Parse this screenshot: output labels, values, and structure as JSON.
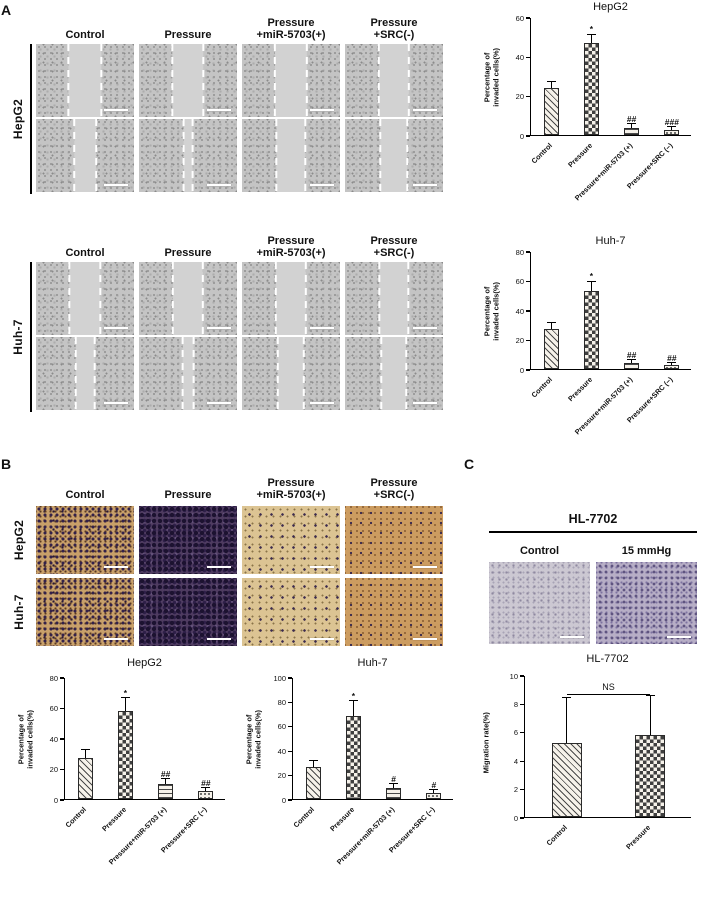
{
  "panels": {
    "A": {
      "label": "A",
      "headers": [
        "Control",
        "Pressure",
        "Pressure\n+miR-5703(+)",
        "Pressure\n+SRC(-)"
      ],
      "blocks": [
        {
          "cell_line": "HepG2",
          "gap_rows": [
            [
              34,
              32,
              33,
              31
            ],
            [
              22,
              9,
              30,
              28
            ]
          ]
        },
        {
          "cell_line": "Huh-7",
          "gap_rows": [
            [
              32,
              31,
              31,
              30
            ],
            [
              19,
              11,
              27,
              26
            ]
          ]
        }
      ]
    },
    "B": {
      "label": "B",
      "headers": [
        "Control",
        "Pressure",
        "Pressure\n+miR-5703(+)",
        "Pressure\n+SRC(-)"
      ],
      "rows": [
        {
          "cell_line": "HepG2",
          "stain": [
            "medium",
            "dense",
            "sparse",
            "warm"
          ]
        },
        {
          "cell_line": "Huh-7",
          "stain": [
            "medium",
            "dense",
            "sparse",
            "warm"
          ]
        }
      ]
    },
    "C": {
      "label": "C",
      "title": "HL-7702",
      "headers": [
        "Control",
        "15 mmHg"
      ],
      "stain": [
        "clight",
        "cdark"
      ]
    }
  },
  "chart_data": [
    {
      "type": "bar",
      "title": "HepG2",
      "ylabel": "Percentage of\ninvaded cells(%)",
      "ylim": [
        0,
        60
      ],
      "yticks": [
        0,
        20,
        40,
        60
      ],
      "categories": [
        "Control",
        "Pressure",
        "Pressure+miR-5703 (+)",
        "Pressure+SRC (−)"
      ],
      "values": [
        24,
        47,
        3.5,
        2.5
      ],
      "errors": [
        3,
        4,
        2,
        1.5
      ],
      "sig": [
        "",
        "*",
        "##",
        "###"
      ],
      "patterns": [
        "diag",
        "check",
        "hline",
        "dots"
      ]
    },
    {
      "type": "bar",
      "title": "Huh-7",
      "ylabel": "Percentage of\ninvaded cells(%)",
      "ylim": [
        0,
        80
      ],
      "yticks": [
        0,
        20,
        40,
        60,
        80
      ],
      "categories": [
        "Control",
        "Pressure",
        "Pressure+miR-5703 (+)",
        "Pressure+SRC (−)"
      ],
      "values": [
        27,
        53,
        4,
        2.5
      ],
      "errors": [
        4,
        6,
        2,
        1.5
      ],
      "sig": [
        "",
        "*",
        "##",
        "##"
      ],
      "patterns": [
        "diag",
        "check",
        "hline",
        "dots"
      ]
    },
    {
      "type": "bar",
      "title": "HepG2",
      "ylabel": "Percentage of\ninvaded cells(%)",
      "ylim": [
        0,
        80
      ],
      "yticks": [
        0,
        20,
        40,
        60,
        80
      ],
      "categories": [
        "Control",
        "Pressure",
        "Pressure+miR-5703 (+)",
        "Pressure+SRC (−)"
      ],
      "values": [
        27,
        58,
        10,
        5
      ],
      "errors": [
        5,
        8,
        3,
        2
      ],
      "sig": [
        "",
        "*",
        "##",
        "##"
      ],
      "patterns": [
        "diag",
        "check",
        "hline",
        "dots"
      ]
    },
    {
      "type": "bar",
      "title": "Huh-7",
      "ylabel": "Percentage of\ninvaded cells(%)",
      "ylim": [
        0,
        100
      ],
      "yticks": [
        0,
        20,
        40,
        60,
        80,
        100
      ],
      "categories": [
        "Control",
        "Pressure",
        "Pressure+miR-5703 (+)",
        "Pressure+SRC (−)"
      ],
      "values": [
        26,
        68,
        9,
        5
      ],
      "errors": [
        5,
        12,
        3,
        2
      ],
      "sig": [
        "",
        "*",
        "#",
        "#"
      ],
      "patterns": [
        "diag",
        "check",
        "hline",
        "dots"
      ]
    },
    {
      "type": "bar",
      "title": "HL-7702",
      "ylabel": "Migration rate(%)",
      "ylim": [
        0,
        10
      ],
      "yticks": [
        0,
        2,
        4,
        6,
        8,
        10
      ],
      "categories": [
        "Control",
        "Pressure"
      ],
      "values": [
        5.2,
        5.8
      ],
      "errors": [
        3.2,
        2.7
      ],
      "sig": [
        "",
        ""
      ],
      "patterns": [
        "diag",
        "check"
      ],
      "bracket": {
        "label": "NS",
        "y": 8.6
      }
    }
  ]
}
